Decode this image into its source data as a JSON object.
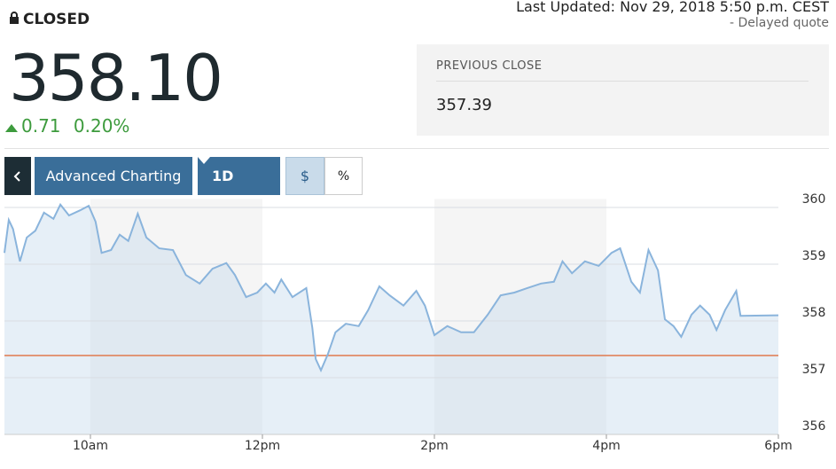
{
  "quote": {
    "status": "CLOSED",
    "price": "358.10",
    "change": "0.71",
    "change_percent": "0.20%",
    "last_updated": "Last Updated: Nov 29, 2018 5:50 p.m. CEST",
    "delayed": "-  Delayed quote",
    "previous_close_label": "PREVIOUS CLOSE",
    "previous_close": 357.39
  },
  "toolbar": {
    "advanced": "Advanced Charting",
    "range": "1D",
    "dollar": "$",
    "percent": "%"
  },
  "chart_data": {
    "type": "line",
    "color": "#8ab4dc",
    "reference_color": "#e07a4f",
    "grid": true,
    "x": [
      9.0,
      9.05,
      9.1,
      9.18,
      9.26,
      9.36,
      9.46,
      9.57,
      9.65,
      9.75,
      9.88,
      9.98,
      10.06,
      10.13,
      10.24,
      10.34,
      10.44,
      10.55,
      10.65,
      10.8,
      10.96,
      11.11,
      11.27,
      11.42,
      11.58,
      11.68,
      11.81,
      11.94,
      12.04,
      12.14,
      12.22,
      12.35,
      12.51,
      12.58,
      12.62,
      12.68,
      12.76,
      12.85,
      12.97,
      13.12,
      13.23,
      13.36,
      13.48,
      13.64,
      13.79,
      13.89,
      14.0,
      14.15,
      14.31,
      14.46,
      14.62,
      14.77,
      14.93,
      15.08,
      15.24,
      15.39,
      15.49,
      15.6,
      15.75,
      15.91,
      16.06,
      16.16,
      16.29,
      16.39,
      16.49,
      16.6,
      16.68,
      16.78,
      16.87,
      16.99,
      17.09,
      17.2,
      17.28,
      17.38,
      17.51,
      17.56,
      18.0
    ],
    "values": [
      359.2,
      359.78,
      359.62,
      359.05,
      359.47,
      359.59,
      359.91,
      359.8,
      360.05,
      359.86,
      359.95,
      360.03,
      359.75,
      359.2,
      359.25,
      359.52,
      359.41,
      359.89,
      359.47,
      359.28,
      359.25,
      358.81,
      358.66,
      358.92,
      359.02,
      358.81,
      358.42,
      358.5,
      358.66,
      358.5,
      358.73,
      358.42,
      358.58,
      357.88,
      357.33,
      357.13,
      357.41,
      357.8,
      357.95,
      357.91,
      358.19,
      358.61,
      358.45,
      358.27,
      358.53,
      358.27,
      357.75,
      357.91,
      357.8,
      357.8,
      358.11,
      358.45,
      358.5,
      358.58,
      358.66,
      358.69,
      359.05,
      358.84,
      359.05,
      358.97,
      359.2,
      359.28,
      358.69,
      358.5,
      359.25,
      358.89,
      358.03,
      357.91,
      357.72,
      358.11,
      358.27,
      358.11,
      357.84,
      358.19,
      358.53,
      358.09,
      358.1
    ],
    "xlim": [
      9,
      18
    ],
    "xticks": [
      {
        "value": 10,
        "label": "10am"
      },
      {
        "value": 12,
        "label": "12pm"
      },
      {
        "value": 14,
        "label": "2pm"
      },
      {
        "value": 16,
        "label": "4pm"
      },
      {
        "value": 18,
        "label": "6pm"
      }
    ],
    "ylim": [
      356,
      360.15
    ],
    "yticks": [
      356,
      357,
      358,
      359,
      360
    ]
  }
}
